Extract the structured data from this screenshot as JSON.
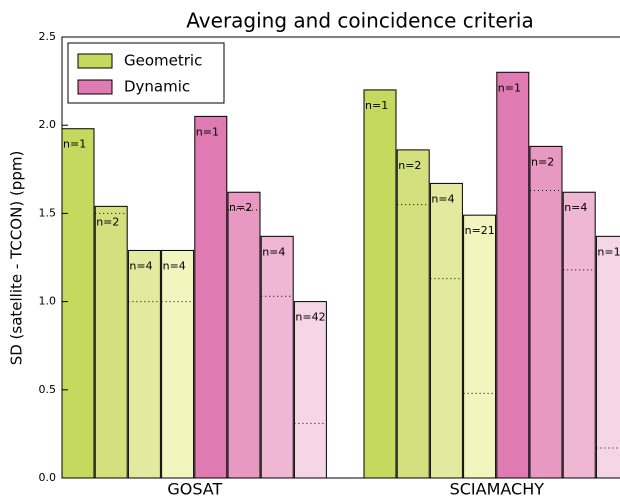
{
  "chart_data": {
    "type": "grouped-bar",
    "title": "Averaging and coincidence criteria",
    "y_label": "SD (satellite - TCCON) (ppm)",
    "categories": [
      "GOSAT",
      "SCIAMACHY"
    ],
    "ylim": [
      0,
      2.5
    ],
    "yticks": [
      {
        "value": 0,
        "label": "0.0"
      },
      0.5,
      {
        "value": 1,
        "label": "1.0"
      },
      1.5,
      {
        "value": 2,
        "label": "2.0"
      },
      2.5
    ],
    "legend": "upper left",
    "series": [
      {
        "name": "Geometric",
        "color": "#c5d95e",
        "shades": [
          "#c5d95e",
          "#d3e07e",
          "#e3ea9f",
          "#f3f5bf"
        ],
        "values": [
          [
            1.98,
            1.54,
            1.29,
            1.29
          ],
          [
            2.2,
            1.86,
            1.67,
            1.49
          ]
        ],
        "labels": [
          [
            "n=1",
            "n=2",
            "n=4",
            "n=4"
          ],
          [
            "n=1",
            "n=2",
            "n=4",
            "n=21"
          ]
        ],
        "dotted": [
          [
            null,
            1.5,
            1.0,
            1.0
          ],
          [
            null,
            1.55,
            1.13,
            0.48
          ]
        ]
      },
      {
        "name": "Dynamic",
        "color": "#e07ab2",
        "shades": [
          "#e07ab2",
          "#e899c2",
          "#efb7d3",
          "#f5d6e6"
        ],
        "values": [
          [
            2.05,
            1.62,
            1.37,
            1.0
          ],
          [
            2.3,
            1.88,
            1.62,
            1.37
          ]
        ],
        "labels": [
          [
            "n=1",
            "n=2",
            "n=4",
            "n=42"
          ],
          [
            "n=1",
            "n=2",
            "n=4",
            "n=1"
          ]
        ],
        "dotted": [
          [
            null,
            1.52,
            1.03,
            0.31
          ],
          [
            null,
            1.63,
            1.18,
            0.17
          ]
        ]
      }
    ]
  }
}
